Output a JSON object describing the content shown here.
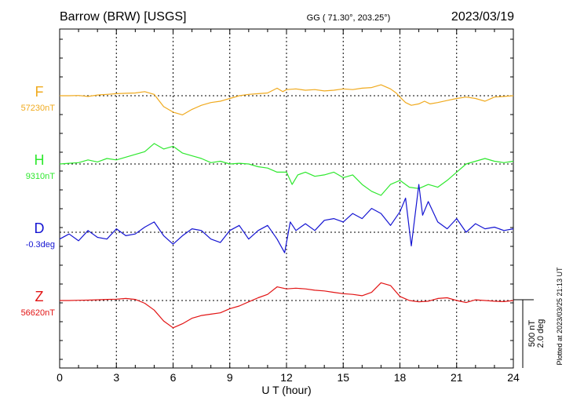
{
  "chart_data": {
    "type": "line",
    "title": "Barrow (BRW)  [USGS]",
    "subtitle": "GG ( 71.30°, 203.25°)",
    "date": "2023/03/19",
    "xlabel": "U T (hour)",
    "xlim": [
      0,
      24
    ],
    "xticks": [
      "0",
      "3",
      "6",
      "9",
      "12",
      "15",
      "18",
      "21",
      "24"
    ],
    "grid": true,
    "scale_bar": {
      "nT": "500 nT",
      "deg": "2.0 deg"
    },
    "plotted_note": "Plotted at 2023/03/25 21:13 UT",
    "series": [
      {
        "name": "F",
        "baseline_label": "57230nT",
        "color": "#f0aa1e",
        "unit": "nT",
        "x": [
          0,
          0.5,
          1,
          1.5,
          2,
          2.5,
          3,
          3.5,
          4,
          4.5,
          5,
          5.5,
          6,
          6.5,
          7,
          7.5,
          8,
          8.5,
          9,
          9.5,
          10,
          10.5,
          11,
          11.5,
          11.8,
          12,
          12.5,
          13,
          13.5,
          14,
          14.5,
          15,
          15.5,
          16,
          16.5,
          17,
          17.5,
          17.8,
          18,
          18.3,
          18.6,
          19,
          19.3,
          19.6,
          20,
          20.5,
          21,
          21.5,
          22,
          22.5,
          23,
          23.5,
          24
        ],
        "y": [
          0,
          0,
          2,
          -5,
          5,
          10,
          15,
          18,
          20,
          30,
          10,
          -80,
          -120,
          -140,
          -100,
          -70,
          -50,
          -40,
          -20,
          0,
          10,
          15,
          20,
          55,
          30,
          45,
          50,
          40,
          45,
          35,
          40,
          50,
          45,
          55,
          60,
          80,
          50,
          20,
          -10,
          -50,
          -70,
          -60,
          -40,
          -60,
          -50,
          -35,
          -20,
          -10,
          -20,
          -40,
          -10,
          -5,
          0
        ]
      },
      {
        "name": "H",
        "baseline_label": "9310nT",
        "color": "#2ee82e",
        "unit": "nT",
        "x": [
          0,
          0.5,
          1,
          1.5,
          2,
          2.5,
          3,
          3.5,
          4,
          4.5,
          5,
          5.5,
          6,
          6.5,
          7,
          7.5,
          8,
          8.5,
          9,
          9.5,
          10,
          10.5,
          11,
          11.5,
          12,
          12.3,
          12.6,
          13,
          13.5,
          14,
          14.5,
          15,
          15.5,
          16,
          16.5,
          17,
          17.5,
          18,
          18.5,
          19,
          19.5,
          20,
          20.5,
          21,
          21.5,
          22,
          22.5,
          23,
          23.5,
          24
        ],
        "y": [
          0,
          5,
          10,
          30,
          15,
          40,
          30,
          50,
          70,
          90,
          150,
          110,
          130,
          80,
          60,
          40,
          10,
          20,
          0,
          5,
          0,
          -20,
          -30,
          -60,
          -60,
          -150,
          -80,
          -60,
          -90,
          -80,
          -60,
          -100,
          -80,
          -150,
          -200,
          -230,
          -150,
          -120,
          -170,
          -180,
          -150,
          -170,
          -120,
          -60,
          0,
          20,
          40,
          20,
          10,
          20
        ]
      },
      {
        "name": "D",
        "baseline_label": "-0.3deg",
        "color": "#1414d2",
        "unit": "deg",
        "x": [
          0,
          0.5,
          1,
          1.5,
          2,
          2.5,
          3,
          3.5,
          4,
          4.5,
          5,
          5.5,
          6,
          6.5,
          7,
          7.5,
          8,
          8.5,
          9,
          9.5,
          10,
          10.5,
          11,
          11.5,
          11.9,
          12.2,
          12.5,
          13,
          13.5,
          14,
          14.5,
          15,
          15.5,
          16,
          16.5,
          17,
          17.5,
          18,
          18.3,
          18.6,
          19,
          19.2,
          19.5,
          20,
          20.5,
          21,
          21.5,
          22,
          22.5,
          23,
          23.5,
          24
        ],
        "y": [
          -0.2,
          -0.05,
          -0.25,
          0.05,
          -0.15,
          -0.2,
          0.1,
          -0.1,
          -0.05,
          0.15,
          0.3,
          -0.1,
          -0.35,
          -0.1,
          0.1,
          0.05,
          -0.2,
          -0.3,
          0.05,
          0.2,
          -0.2,
          0.05,
          0.2,
          -0.2,
          -0.6,
          0.3,
          0.05,
          0.25,
          0.05,
          0.35,
          0.4,
          0.3,
          0.55,
          0.4,
          0.7,
          0.55,
          0.2,
          0.6,
          1.0,
          -0.4,
          1.4,
          0.5,
          0.9,
          0.3,
          0.1,
          0.4,
          0.0,
          0.25,
          0.1,
          0.15,
          0.05,
          0.1
        ]
      },
      {
        "name": "Z",
        "baseline_label": "56620nT",
        "color": "#e21414",
        "unit": "nT",
        "x": [
          0,
          0.5,
          1,
          1.5,
          2,
          2.5,
          3,
          3.5,
          4,
          4.5,
          5,
          5.5,
          6,
          6.5,
          7,
          7.5,
          8,
          8.5,
          9,
          9.5,
          10,
          10.5,
          11,
          11.5,
          12,
          12.5,
          13,
          13.5,
          14,
          14.5,
          15,
          15.5,
          16,
          16.5,
          17,
          17.5,
          18,
          18.5,
          19,
          19.5,
          20,
          20.5,
          21,
          21.5,
          22,
          22.5,
          23,
          23.5,
          24
        ],
        "y": [
          0,
          0,
          2,
          3,
          5,
          8,
          10,
          15,
          8,
          -20,
          -70,
          -150,
          -200,
          -170,
          -130,
          -110,
          -100,
          -90,
          -60,
          -40,
          -10,
          20,
          45,
          100,
          85,
          90,
          85,
          75,
          70,
          60,
          50,
          45,
          35,
          60,
          130,
          110,
          30,
          0,
          -10,
          -5,
          15,
          20,
          0,
          -15,
          5,
          0,
          -5,
          -8,
          0
        ]
      }
    ]
  }
}
